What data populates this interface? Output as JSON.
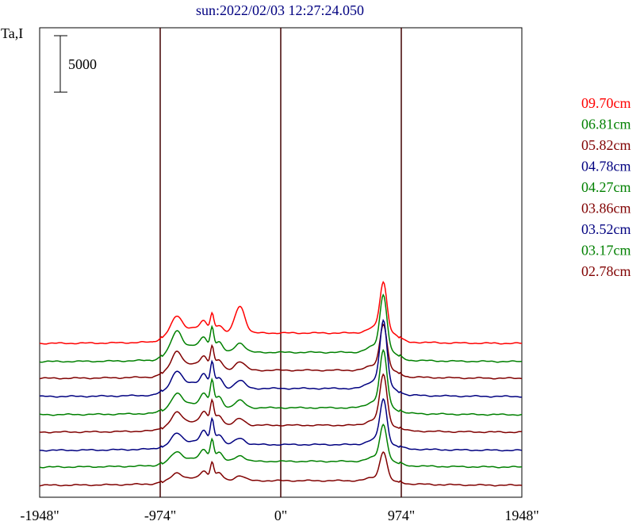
{
  "chart_data": {
    "type": "line",
    "title": "sun:2022/02/03 12:27:24.050",
    "ylabel": "Ta,I",
    "xlabel": "",
    "scale_bar_label": "5000",
    "scale_bar_value": 5000,
    "xlim": [
      -1948,
      1948
    ],
    "x_ticks": [
      {
        "value": -1948,
        "label": "-1948\""
      },
      {
        "value": -974,
        "label": "-974\""
      },
      {
        "value": 0,
        "label": "0\""
      },
      {
        "value": 974,
        "label": "974\""
      },
      {
        "value": 1948,
        "label": "1948\""
      }
    ],
    "vertical_lines": [
      -974,
      0,
      974
    ],
    "legend_placement": "right",
    "series": [
      {
        "name": "09.70cm",
        "color": "#ff0000",
        "offset": 17500,
        "peaks": {
          "left": 2100,
          "mid": 2300,
          "right": 3700,
          "jet": 6600,
          "plateau": 900
        }
      },
      {
        "name": "06.81cm",
        "color": "#008000",
        "offset": 15000,
        "peaks": {
          "left": 2700,
          "mid": 3000,
          "right": 1300,
          "jet": 7500,
          "plateau": 800
        }
      },
      {
        "name": "05.82cm",
        "color": "#800000",
        "offset": 12700,
        "peaks": {
          "left": 2400,
          "mid": 2900,
          "right": 1200,
          "jet": 6000,
          "plateau": 700
        }
      },
      {
        "name": "04.78cm",
        "color": "#000080",
        "offset": 10200,
        "peaks": {
          "left": 2200,
          "mid": 3100,
          "right": 1100,
          "jet": 8800,
          "plateau": 700
        }
      },
      {
        "name": "04.27cm",
        "color": "#008000",
        "offset": 7700,
        "peaks": {
          "left": 1800,
          "mid": 3300,
          "right": 1000,
          "jet": 7400,
          "plateau": 600
        }
      },
      {
        "name": "03.86cm",
        "color": "#800000",
        "offset": 5300,
        "peaks": {
          "left": 1600,
          "mid": 3000,
          "right": 900,
          "jet": 6600,
          "plateau": 600
        }
      },
      {
        "name": "03.52cm",
        "color": "#000080",
        "offset": 2800,
        "peaks": {
          "left": 1400,
          "mid": 3100,
          "right": 900,
          "jet": 5900,
          "plateau": 500
        }
      },
      {
        "name": "03.17cm",
        "color": "#008000",
        "offset": 500,
        "peaks": {
          "left": 1200,
          "mid": 2700,
          "right": 800,
          "jet": 4800,
          "plateau": 500
        }
      },
      {
        "name": "02.78cm",
        "color": "#800000",
        "offset": -2000,
        "peaks": {
          "left": 1000,
          "mid": 2300,
          "right": 700,
          "jet": 3800,
          "plateau": 400
        }
      }
    ],
    "title_color": "#000080",
    "frame_color": "#000000",
    "vline_color": "#400000"
  }
}
